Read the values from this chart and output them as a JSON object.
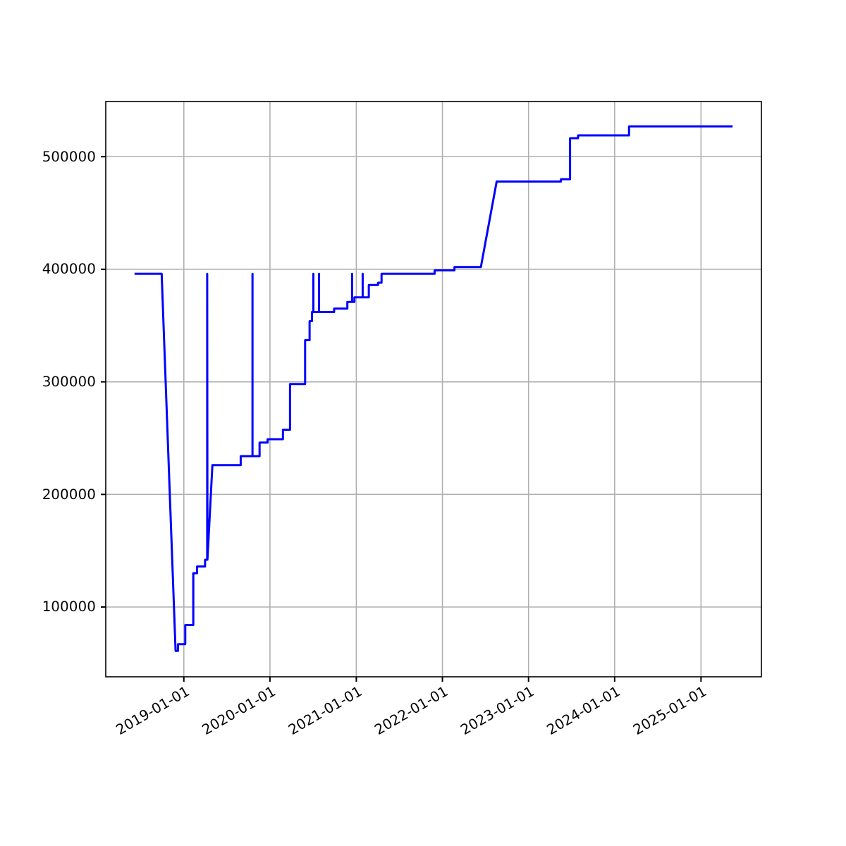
{
  "chart_data": {
    "type": "line",
    "xlim": [
      "2018-02-04",
      "2025-09-14"
    ],
    "ylim": [
      38000,
      549000
    ],
    "xticks": [
      {
        "value": "2019-01-01",
        "label": "2019-01-01"
      },
      {
        "value": "2020-01-01",
        "label": "2020-01-01"
      },
      {
        "value": "2021-01-01",
        "label": "2021-01-01"
      },
      {
        "value": "2022-01-01",
        "label": "2022-01-01"
      },
      {
        "value": "2023-01-01",
        "label": "2023-01-01"
      },
      {
        "value": "2024-01-01",
        "label": "2024-01-01"
      },
      {
        "value": "2025-01-01",
        "label": "2025-01-01"
      }
    ],
    "yticks": [
      100000,
      200000,
      300000,
      400000,
      500000
    ],
    "grid": true,
    "line_style": "solid",
    "marker": "none",
    "series": [
      {
        "color": "#0000ff",
        "x": [
          "2018-06-06",
          "2018-09-29",
          "2018-11-27",
          "2018-12-07",
          "2018-12-07",
          "2019-01-07",
          "2019-01-07",
          "2019-02-10",
          "2019-02-10",
          "2019-02-26",
          "2019-02-26",
          "2019-04-01",
          "2019-04-01",
          "2019-04-10",
          "2019-04-10",
          "2019-04-11",
          "2019-05-02",
          "2019-08-30",
          "2019-08-30",
          "2019-10-19",
          "2019-10-19",
          "2019-10-19",
          "2019-11-18",
          "2019-11-18",
          "2019-12-22",
          "2019-12-22",
          "2020-02-25",
          "2020-02-25",
          "2020-03-26",
          "2020-03-26",
          "2020-05-29",
          "2020-05-29",
          "2020-06-17",
          "2020-06-17",
          "2020-06-27",
          "2020-06-27",
          "2020-07-03",
          "2020-07-03",
          "2020-07-03",
          "2020-07-27",
          "2020-07-27",
          "2020-07-27",
          "2020-09-29",
          "2020-09-29",
          "2020-11-24",
          "2020-11-24",
          "2020-12-14",
          "2020-12-14",
          "2020-12-14",
          "2020-12-24",
          "2020-12-24",
          "2021-01-28",
          "2021-01-28",
          "2021-01-28",
          "2021-02-23",
          "2021-02-23",
          "2021-04-03",
          "2021-04-03",
          "2021-04-18",
          "2021-04-18",
          "2021-11-29",
          "2021-11-29",
          "2022-02-21",
          "2022-02-21",
          "2022-06-13",
          "2022-08-19",
          "2023-05-18",
          "2023-05-18",
          "2023-06-26",
          "2023-06-26",
          "2023-07-30",
          "2023-07-30",
          "2024-03-02",
          "2024-03-02",
          "2025-05-15"
        ],
        "values": [
          396000,
          396000,
          61000,
          61000,
          67000,
          67000,
          84000,
          84000,
          130000,
          130000,
          136000,
          136000,
          142000,
          142000,
          396000,
          142000,
          226000,
          226000,
          234000,
          234000,
          396000,
          234000,
          234000,
          246000,
          246000,
          249000,
          249000,
          257500,
          257500,
          298000,
          298000,
          337000,
          337000,
          354000,
          354000,
          362000,
          362000,
          396000,
          362000,
          362000,
          396000,
          362000,
          362000,
          365000,
          365000,
          371000,
          371000,
          396000,
          371000,
          371000,
          375000,
          375000,
          396000,
          375000,
          375000,
          386000,
          386000,
          388000,
          388000,
          396000,
          396000,
          399000,
          399000,
          402000,
          402000,
          478000,
          478000,
          480000,
          480000,
          516500,
          516500,
          519000,
          519000,
          527000,
          527000
        ]
      }
    ]
  }
}
